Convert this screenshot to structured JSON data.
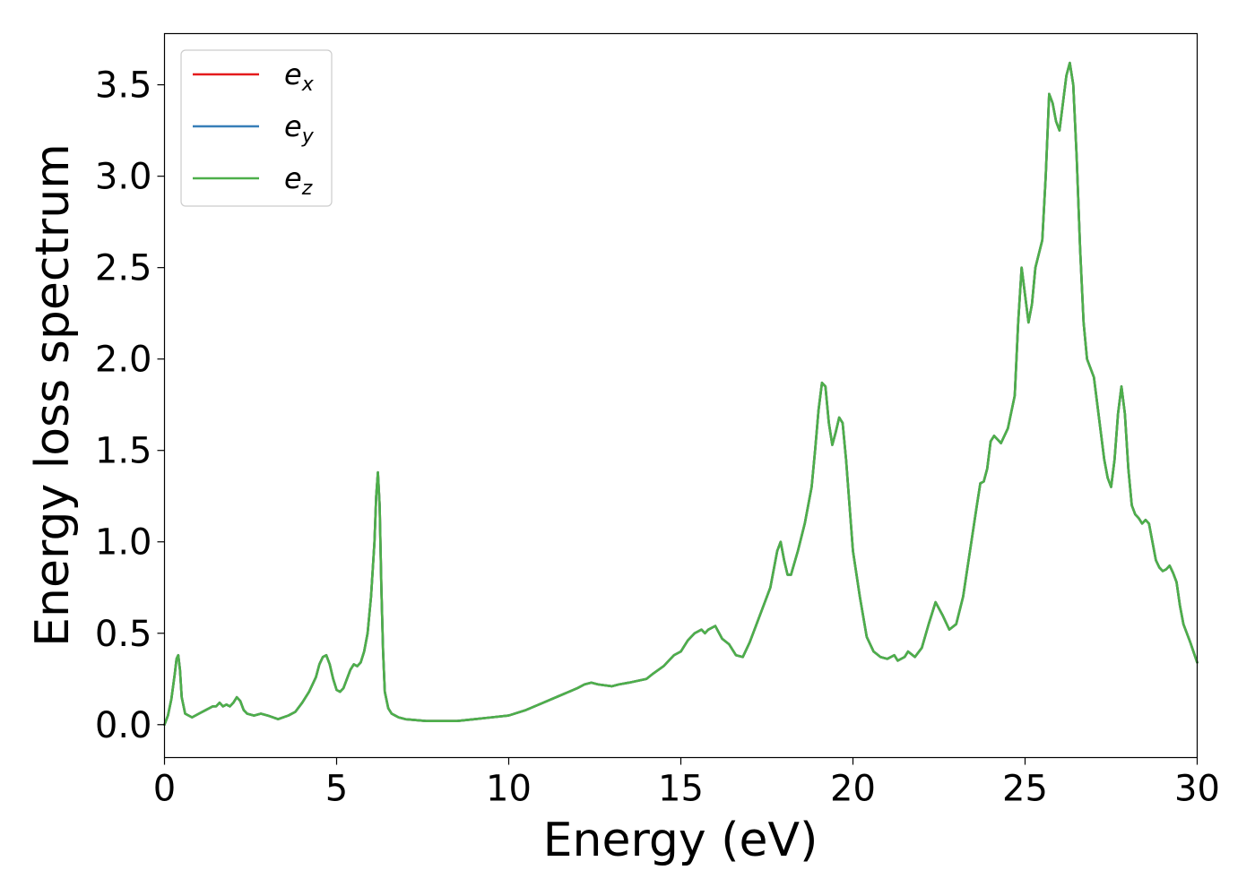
{
  "chart_data": {
    "type": "line",
    "xlabel": "Energy (eV)",
    "ylabel": "Energy loss spectrum",
    "xlim": [
      0,
      30
    ],
    "ylim": [
      -0.18,
      3.78
    ],
    "xticks": [
      0,
      5,
      10,
      15,
      20,
      25,
      30
    ],
    "xtick_labels": [
      "0",
      "5",
      "10",
      "15",
      "20",
      "25",
      "30"
    ],
    "yticks": [
      0.0,
      0.5,
      1.0,
      1.5,
      2.0,
      2.5,
      3.0,
      3.5
    ],
    "ytick_labels": [
      "0.0",
      "0.5",
      "1.0",
      "1.5",
      "2.0",
      "2.5",
      "3.0",
      "3.5"
    ],
    "grid": false,
    "legend_position": "top-left",
    "series": [
      {
        "name": "e",
        "subscript": "x",
        "color": "#e41a1c"
      },
      {
        "name": "e",
        "subscript": "y",
        "color": "#377eb8"
      },
      {
        "name": "e",
        "subscript": "z",
        "color": "#4daf4a"
      }
    ],
    "x": [
      0,
      0.1,
      0.2,
      0.3,
      0.35,
      0.4,
      0.45,
      0.5,
      0.6,
      0.8,
      1.0,
      1.2,
      1.4,
      1.5,
      1.6,
      1.7,
      1.8,
      1.9,
      2.0,
      2.1,
      2.2,
      2.3,
      2.4,
      2.6,
      2.8,
      3.0,
      3.3,
      3.6,
      3.8,
      4.0,
      4.2,
      4.4,
      4.5,
      4.6,
      4.7,
      4.8,
      4.9,
      5.0,
      5.1,
      5.2,
      5.3,
      5.4,
      5.5,
      5.6,
      5.7,
      5.8,
      5.9,
      6.0,
      6.1,
      6.15,
      6.2,
      6.25,
      6.3,
      6.35,
      6.4,
      6.5,
      6.6,
      6.7,
      6.8,
      7.0,
      7.3,
      7.6,
      8.0,
      8.5,
      9.0,
      9.5,
      10.0,
      10.5,
      11.0,
      11.5,
      12.0,
      12.2,
      12.4,
      12.6,
      13.0,
      13.2,
      13.5,
      14.0,
      14.2,
      14.5,
      14.6,
      14.8,
      15.0,
      15.2,
      15.4,
      15.6,
      15.7,
      15.8,
      16.0,
      16.2,
      16.4,
      16.6,
      16.8,
      17.0,
      17.2,
      17.4,
      17.6,
      17.8,
      17.9,
      18.0,
      18.1,
      18.2,
      18.4,
      18.6,
      18.8,
      18.9,
      19.0,
      19.1,
      19.2,
      19.3,
      19.4,
      19.5,
      19.6,
      19.7,
      19.8,
      19.9,
      20.0,
      20.2,
      20.4,
      20.6,
      20.8,
      21.0,
      21.2,
      21.3,
      21.5,
      21.6,
      21.8,
      22.0,
      22.2,
      22.4,
      22.6,
      22.8,
      23.0,
      23.2,
      23.4,
      23.6,
      23.7,
      23.8,
      23.9,
      24.0,
      24.1,
      24.2,
      24.3,
      24.5,
      24.7,
      24.8,
      24.9,
      25.0,
      25.1,
      25.2,
      25.3,
      25.5,
      25.6,
      25.7,
      25.8,
      25.9,
      26.0,
      26.1,
      26.2,
      26.3,
      26.4,
      26.5,
      26.6,
      26.7,
      26.8,
      27.0,
      27.1,
      27.2,
      27.3,
      27.4,
      27.5,
      27.6,
      27.7,
      27.8,
      27.9,
      28.0,
      28.1,
      28.2,
      28.3,
      28.4,
      28.5,
      28.6,
      28.7,
      28.8,
      28.9,
      29.0,
      29.1,
      29.2,
      29.3,
      29.4,
      29.5,
      29.6,
      29.8,
      30.0
    ],
    "y": [
      0.0,
      0.05,
      0.14,
      0.28,
      0.36,
      0.38,
      0.3,
      0.15,
      0.06,
      0.04,
      0.06,
      0.08,
      0.1,
      0.1,
      0.12,
      0.1,
      0.11,
      0.1,
      0.12,
      0.15,
      0.13,
      0.08,
      0.06,
      0.05,
      0.06,
      0.05,
      0.03,
      0.05,
      0.07,
      0.12,
      0.18,
      0.26,
      0.33,
      0.37,
      0.38,
      0.33,
      0.25,
      0.19,
      0.18,
      0.2,
      0.25,
      0.3,
      0.33,
      0.32,
      0.34,
      0.4,
      0.5,
      0.7,
      1.0,
      1.25,
      1.38,
      1.2,
      0.75,
      0.4,
      0.18,
      0.09,
      0.06,
      0.05,
      0.04,
      0.03,
      0.025,
      0.02,
      0.02,
      0.02,
      0.03,
      0.04,
      0.05,
      0.08,
      0.12,
      0.16,
      0.2,
      0.22,
      0.23,
      0.22,
      0.21,
      0.22,
      0.23,
      0.25,
      0.28,
      0.32,
      0.34,
      0.38,
      0.4,
      0.46,
      0.5,
      0.52,
      0.5,
      0.52,
      0.54,
      0.47,
      0.44,
      0.38,
      0.37,
      0.45,
      0.55,
      0.65,
      0.75,
      0.95,
      1.0,
      0.9,
      0.82,
      0.82,
      0.95,
      1.1,
      1.3,
      1.5,
      1.72,
      1.87,
      1.85,
      1.65,
      1.53,
      1.6,
      1.68,
      1.65,
      1.45,
      1.2,
      0.95,
      0.7,
      0.48,
      0.4,
      0.37,
      0.36,
      0.38,
      0.35,
      0.37,
      0.4,
      0.37,
      0.42,
      0.55,
      0.67,
      0.6,
      0.52,
      0.55,
      0.7,
      0.95,
      1.2,
      1.32,
      1.33,
      1.4,
      1.55,
      1.58,
      1.56,
      1.54,
      1.62,
      1.8,
      2.2,
      2.5,
      2.35,
      2.2,
      2.3,
      2.5,
      2.65,
      3.0,
      3.45,
      3.4,
      3.3,
      3.25,
      3.4,
      3.55,
      3.62,
      3.5,
      3.1,
      2.6,
      2.2,
      2.0,
      1.9,
      1.75,
      1.6,
      1.45,
      1.35,
      1.3,
      1.45,
      1.7,
      1.85,
      1.7,
      1.4,
      1.2,
      1.15,
      1.13,
      1.1,
      1.12,
      1.1,
      1.0,
      0.9,
      0.86,
      0.84,
      0.85,
      0.87,
      0.83,
      0.78,
      0.65,
      0.55,
      0.45,
      0.34
    ]
  }
}
